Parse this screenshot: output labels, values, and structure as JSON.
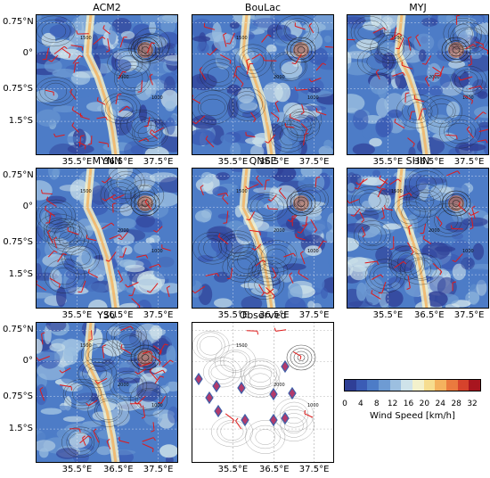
{
  "panels": [
    {
      "id": "acm2",
      "title": "ACM2",
      "kind": "model",
      "seed": 11
    },
    {
      "id": "boulac",
      "title": "BouLac",
      "kind": "model",
      "seed": 23
    },
    {
      "id": "myj",
      "title": "MYJ",
      "kind": "model",
      "seed": 37
    },
    {
      "id": "mynn",
      "title": "MYNN",
      "kind": "model",
      "seed": 41
    },
    {
      "id": "qnse",
      "title": "QNSE",
      "kind": "model",
      "seed": 53
    },
    {
      "id": "shin",
      "title": "SHIN",
      "kind": "model",
      "seed": 67
    },
    {
      "id": "ysu",
      "title": "YSU",
      "kind": "model",
      "seed": 79
    },
    {
      "id": "observed",
      "title": "Observed",
      "kind": "observed",
      "seed": 97
    }
  ],
  "axes": {
    "lat_ticks": [
      "0.75°N",
      "0°",
      "0.75°S",
      "1.5°S"
    ],
    "lon_ticks": [
      "35.5°E",
      "36.5°E",
      "37.5°E"
    ]
  },
  "contour_labels": [
    "1500",
    "2000",
    "1000"
  ],
  "colorbar": {
    "label": "Wind Speed [km/h]",
    "ticks": [
      "0",
      "4",
      "8",
      "12",
      "16",
      "20",
      "24",
      "28",
      "32"
    ],
    "min": 0,
    "max": 34,
    "colors": [
      "#2f3f96",
      "#3b5cb5",
      "#4d7cc7",
      "#6e9bd3",
      "#9cbfe0",
      "#cfe3ea",
      "#f3f1cc",
      "#f6dd8f",
      "#f4b25e",
      "#ea7a3e",
      "#d6432c",
      "#a8151f"
    ]
  },
  "barb_color": "#e01a1a",
  "station_color": "#b23a6b",
  "station_edge": "#3f5fa8"
}
